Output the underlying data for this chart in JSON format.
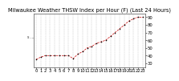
{
  "title": "Milwaukee Weather THSW Index per Hour (F) (Last 24 Hours)",
  "hours": [
    0,
    1,
    2,
    3,
    4,
    5,
    6,
    7,
    8,
    9,
    10,
    11,
    12,
    13,
    14,
    15,
    16,
    17,
    18,
    19,
    20,
    21,
    22,
    23
  ],
  "values": [
    35,
    38,
    40,
    40,
    40,
    40,
    40,
    40,
    36,
    42,
    45,
    50,
    52,
    56,
    58,
    60,
    65,
    70,
    75,
    80,
    85,
    88,
    90,
    90
  ],
  "ylim": [
    25,
    95
  ],
  "ytick_vals": [
    30,
    40,
    50,
    60,
    70,
    80,
    90
  ],
  "ytick_labels": [
    "30",
    "40",
    "50",
    "60",
    "70",
    "80",
    "90"
  ],
  "line_color": "#cc0000",
  "marker_color": "#000000",
  "bg_color": "#ffffff",
  "grid_color": "#bbbbbb",
  "title_fontsize": 4.8,
  "tick_fontsize": 3.8,
  "ylabel_left": "s ..."
}
